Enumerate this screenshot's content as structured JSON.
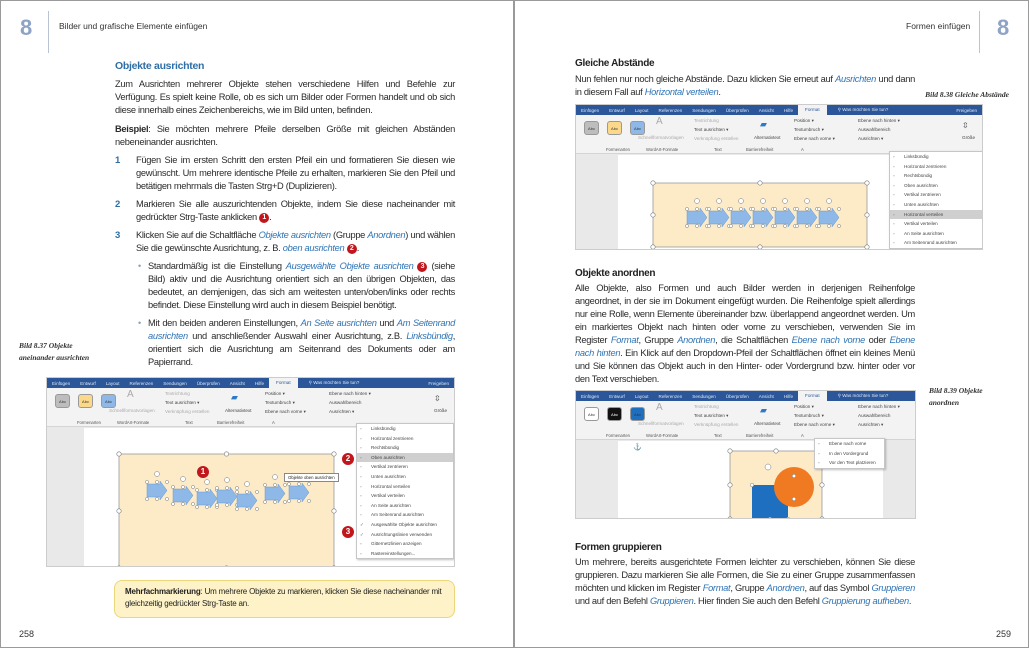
{
  "colors": {
    "accent": "#2e6ea6",
    "link": "#2f74b5",
    "callout_bg": "#fdf2c8",
    "badge": "#c0161c",
    "ribbon_tab": "#2b579a",
    "canvas": "#fdebc8",
    "arrow": "#8db8e8",
    "shape_blue": "#1f6fc0",
    "shape_orange": "#f07a22"
  },
  "left": {
    "chapter": "8",
    "running_head": "Bilder und grafische Elemente einfügen",
    "heading": "Objekte ausrichten",
    "intro": "Zum Ausrichten mehrerer Objekte stehen verschiedene Hilfen und Befehle zur Verfügung. Es spielt keine Rolle, ob es sich um Bilder oder Formen handelt und ob sich diese innerhalb eines Zeichenbereichs, wie im Bild unten, befinden.",
    "example": [
      {
        "b": "Beispiel"
      },
      {
        "t": ": Sie möchten mehrere Pfeile derselben Größe mit gleichen Abständen nebeneinander ausrichten."
      }
    ],
    "steps": [
      {
        "num": "1",
        "runs": [
          {
            "t": "Fügen Sie im ersten Schritt den ersten Pfeil ein und formatieren Sie diesen wie gewünscht. Um mehrere identische Pfeile zu erhalten, markieren Sie den Pfeil und betätigen mehrmals die Tasten Strg+D (Duplizieren)."
          }
        ]
      },
      {
        "num": "2",
        "runs": [
          {
            "t": "Markieren Sie alle auszurichtenden Objekte, indem Sie diese nacheinander mit gedrückter Strg-Taste anklicken "
          },
          {
            "badge": "1"
          },
          {
            "t": "."
          }
        ]
      },
      {
        "num": "3",
        "runs": [
          {
            "t": "Klicken Sie auf die Schaltfläche "
          },
          {
            "l": "Objekte ausrichten"
          },
          {
            "t": " (Gruppe "
          },
          {
            "l": "Anordnen"
          },
          {
            "t": ") und wählen Sie die gewünschte Ausrichtung, z. B. "
          },
          {
            "l": "oben ausrichten"
          },
          {
            "t": " "
          },
          {
            "badge": "2"
          },
          {
            "t": "."
          }
        ]
      }
    ],
    "bullets": [
      {
        "runs": [
          {
            "t": "Standardmäßig ist die Einstellung "
          },
          {
            "l": "Ausgewählte Objekte ausrichten"
          },
          {
            "t": " "
          },
          {
            "badge": "3"
          },
          {
            "t": " (siehe Bild) aktiv und die Ausrichtung orientiert sich an den übrigen Objekten, das bedeutet, an demjenigen, das sich am weitesten unten/oben/links oder rechts befindet. Diese Einstellung wird auch in diesem Beispiel benötigt."
          }
        ]
      },
      {
        "runs": [
          {
            "t": "Mit den beiden anderen Einstellungen, "
          },
          {
            "l": "An Seite ausrichten"
          },
          {
            "t": " und "
          },
          {
            "l": "Am Seitenrand ausrichten"
          },
          {
            "t": " und anschließender Auswahl einer Ausrichtung, z.B. "
          },
          {
            "l": "Linksbündig"
          },
          {
            "t": ", orientiert sich die Ausrichtung am Seitenrand des Dokuments oder am Papierrand."
          }
        ]
      }
    ],
    "caption": "Bild 8.37 Objekte aneinander ausrichten",
    "callout": {
      "bold": "Mehrfachmarkierung",
      "text": ": Um mehrere Objekte zu markieren, klicken Sie diese nacheinander mit gleichzeitig gedrückter Strg-Taste an."
    },
    "page_number": "258"
  },
  "right": {
    "chapter": "8",
    "running_head": "Formen einfügen",
    "sec1": {
      "heading": "Gleiche Abstände",
      "runs": [
        {
          "t": "Nun fehlen nur noch gleiche Abstände. Dazu klicken Sie erneut auf "
        },
        {
          "l": "Ausrichten"
        },
        {
          "t": " und dann in diesem Fall auf "
        },
        {
          "l": "Horizontal verteilen"
        },
        {
          "t": "."
        }
      ],
      "caption": "Bild 8.38 Gleiche Abstände"
    },
    "sec2": {
      "heading": "Objekte anordnen",
      "runs": [
        {
          "t": "Alle Objekte, also Formen und auch Bilder werden in derjenigen Reihenfolge angeordnet, in der sie im Dokument eingefügt wurden. Die Reihenfolge spielt allerdings nur eine Rolle, wenn Elemente übereinander bzw. überlappend angeordnet werden. Um ein markiertes Objekt nach hinten oder vorne zu verschieben, verwenden Sie im Register "
        },
        {
          "l": "Format"
        },
        {
          "t": ", Gruppe "
        },
        {
          "l": "Anordnen"
        },
        {
          "t": ", die Schaltflächen "
        },
        {
          "l": "Ebene nach vorne"
        },
        {
          "t": " oder "
        },
        {
          "l": "Ebene nach hinten"
        },
        {
          "t": ". Ein Klick auf den Dropdown-Pfeil der Schaltflächen öffnet ein kleines Menü und Sie können das Objekt auch in den Hinter- oder Vordergrund bzw. hinter oder vor den Text verschieben."
        }
      ],
      "caption": "Bild 8.39 Objekte anordnen"
    },
    "sec3": {
      "heading": "Formen gruppieren",
      "runs": [
        {
          "t": "Um mehrere, bereits ausgerichtete Formen leichter zu verschieben, können Sie diese gruppieren. Dazu markieren Sie alle Formen, die Sie zu einer Gruppe zusammenfassen möchten und klicken im Register "
        },
        {
          "l": "Format"
        },
        {
          "t": ", Gruppe "
        },
        {
          "l": "Anordnen"
        },
        {
          "t": ", auf das Symbol "
        },
        {
          "l": "Gruppieren"
        },
        {
          "t": " und auf den Befehl "
        },
        {
          "l": "Gruppieren"
        },
        {
          "t": ". Hier finden Sie auch den Befehl "
        },
        {
          "l": "Gruppierung aufheben"
        },
        {
          "t": "."
        }
      ]
    },
    "page_number": "259"
  },
  "ribbon": {
    "tabs": [
      "Einfügen",
      "Entwurf",
      "Layout",
      "Referenzen",
      "Sendungen",
      "Überprüfen",
      "Ansicht",
      "Hilfe"
    ],
    "active_tab": "Format",
    "tell_me": "Was möchten Sie tun?",
    "share": "Freigeben",
    "style_label": "Abc",
    "quick_styles": "Schnellformatvorlagen",
    "text_direction": "Textrichtung",
    "align_text": "Text ausrichten",
    "create_link": "Verknüpfung erstellen",
    "alt_text": "Alternativtext",
    "position": "Position",
    "wrap": "Textumbruch",
    "forward": "Ebene nach vorne",
    "backward": "Ebene nach hinten",
    "selection_pane": "Auswahlbereich",
    "align": "Ausrichten",
    "size": "Größe",
    "groups": [
      "Formenarten",
      "WordArt-Formate",
      "Text",
      "Barrierefreiheit",
      "A"
    ]
  },
  "screenshots": [
    {
      "menu": [
        {
          "label": "Linksbündig"
        },
        {
          "label": "Horizontal zentrieren"
        },
        {
          "label": "Rechtsbündig"
        },
        {
          "label": "Oben ausrichten",
          "highlight": true
        },
        {
          "label": "Vertikal zentrieren"
        },
        {
          "label": "Unten ausrichten"
        },
        {
          "label": "Horizontal verteilen"
        },
        {
          "label": "Vertikal verteilen"
        },
        {
          "label": "An Seite ausrichten"
        },
        {
          "label": "Am Seitenrand ausrichten"
        },
        {
          "label": "Ausgewählte Objekte ausrichten",
          "checked": true
        },
        {
          "label": "Ausrichtungslinien verwenden",
          "checked": true
        },
        {
          "label": "Gitternetzlinien anzeigen"
        },
        {
          "label": "Rastereinstellungen..."
        }
      ],
      "tooltip": "Objekte oben ausrichten",
      "badges": [
        "1",
        "2",
        "3"
      ]
    },
    {
      "menu": [
        {
          "label": "Linksbündig"
        },
        {
          "label": "Horizontal zentrieren"
        },
        {
          "label": "Rechtsbündig"
        },
        {
          "label": "Oben ausrichten"
        },
        {
          "label": "Vertikal zentrieren"
        },
        {
          "label": "Unten ausrichten"
        },
        {
          "label": "Horizontal verteilen",
          "highlight": true
        },
        {
          "label": "Vertikal verteilen"
        },
        {
          "label": "An Seite ausrichten"
        },
        {
          "label": "Am Seitenrand ausrichten"
        }
      ]
    },
    {
      "menu": [
        {
          "label": "Ebene nach vorne"
        },
        {
          "label": "In den Vordergrund"
        },
        {
          "label": "Vor den Text platzieren"
        }
      ]
    }
  ]
}
